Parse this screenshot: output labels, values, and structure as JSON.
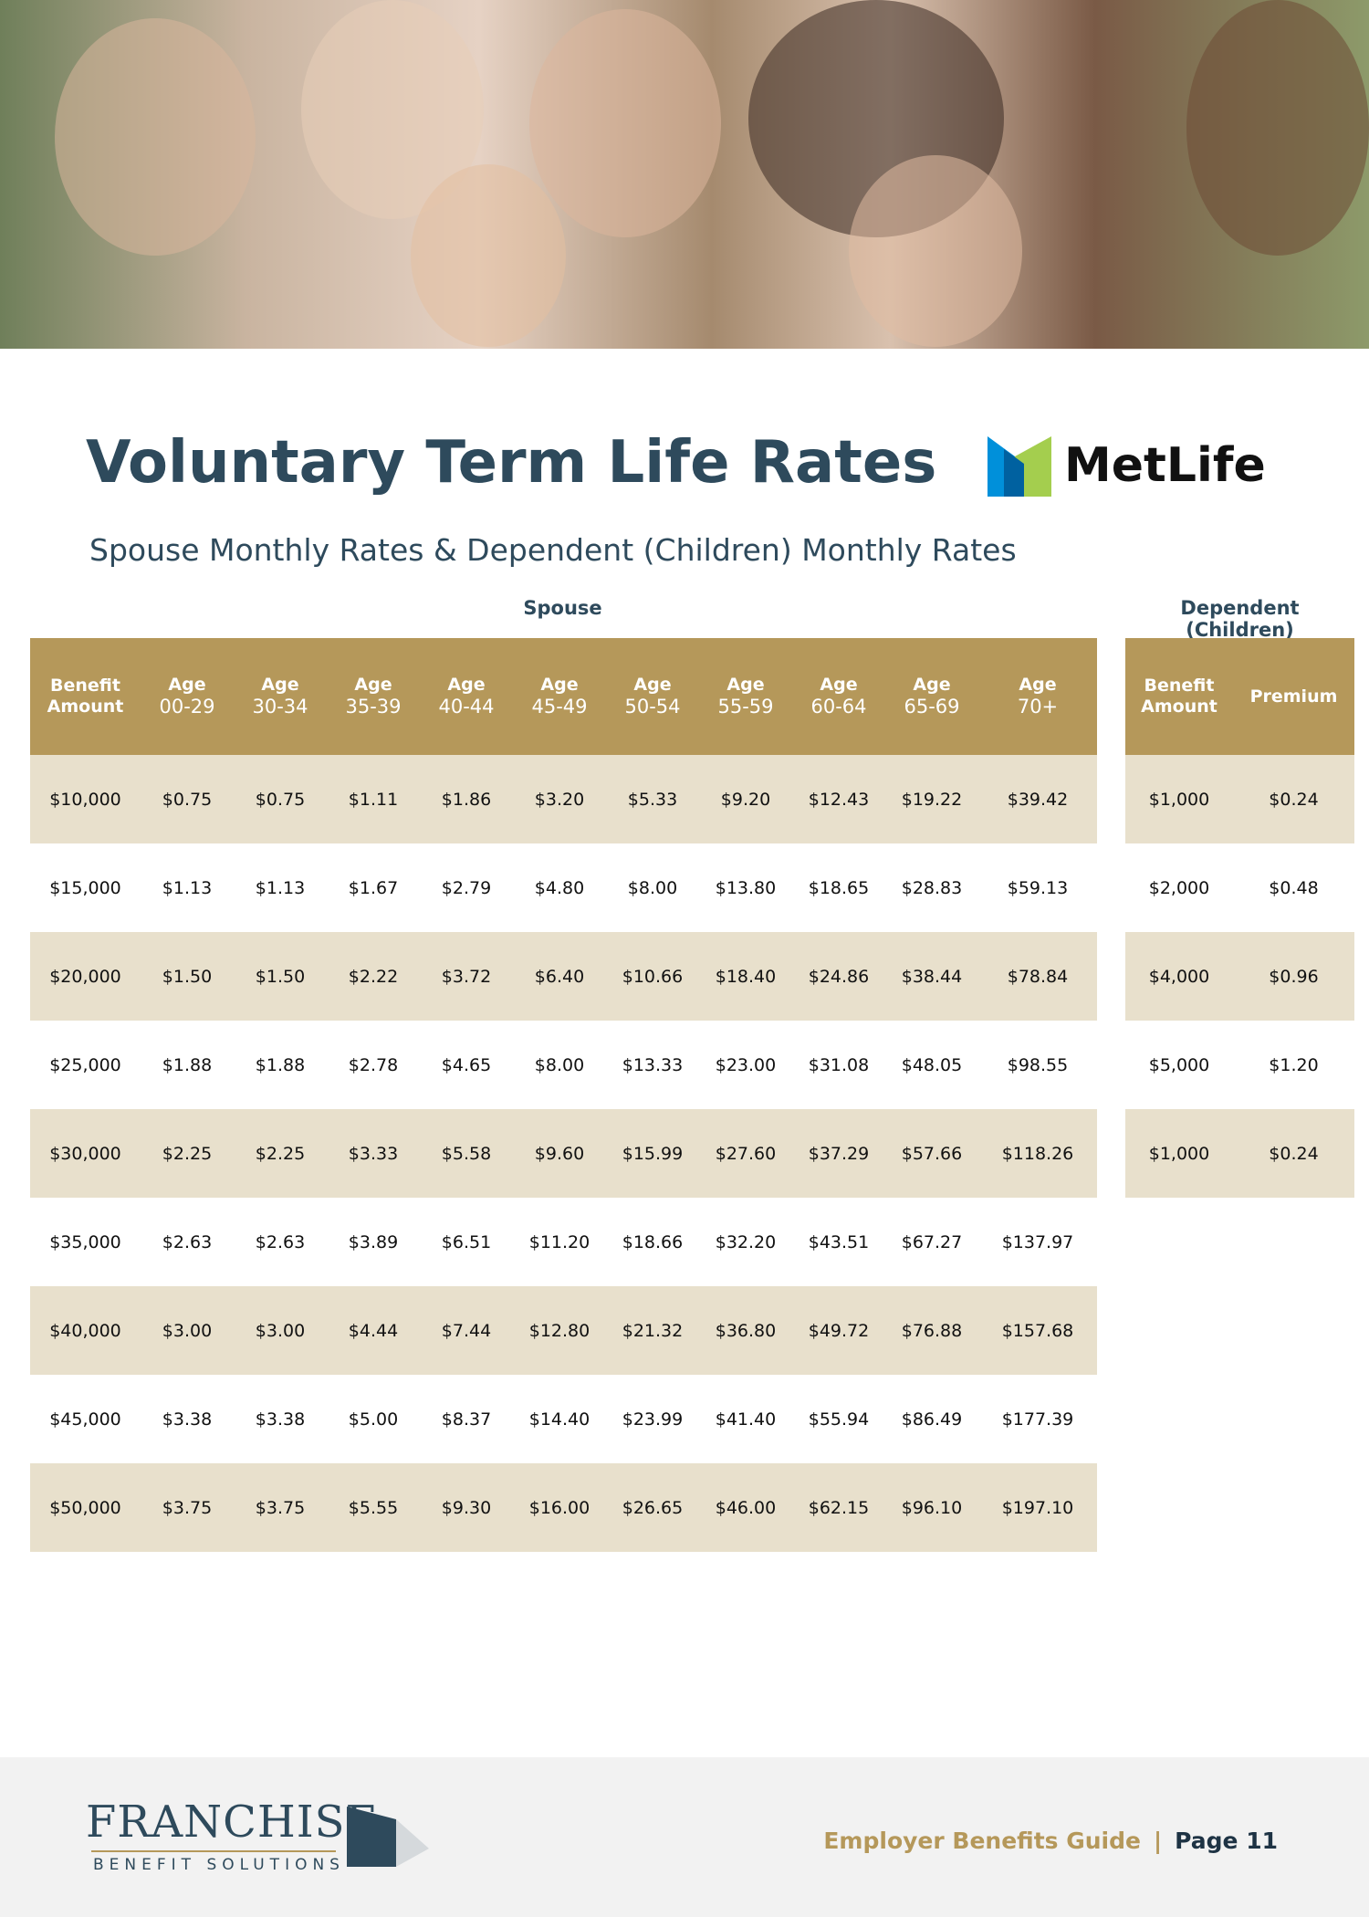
{
  "header": {
    "title": "Voluntary Term Life Rates",
    "subtitle": "Spouse Monthly Rates & Dependent (Children) Monthly Rates",
    "logo": "MetLife"
  },
  "spouse_table": {
    "label": "Spouse",
    "columns": [
      [
        "Benefit",
        "Amount"
      ],
      [
        "Age",
        "00-29"
      ],
      [
        "Age",
        "30-34"
      ],
      [
        "Age",
        "35-39"
      ],
      [
        "Age",
        "40-44"
      ],
      [
        "Age",
        "45-49"
      ],
      [
        "Age",
        "50-54"
      ],
      [
        "Age",
        "55-59"
      ],
      [
        "Age",
        "60-64"
      ],
      [
        "Age",
        "65-69"
      ],
      [
        "Age",
        "70+"
      ]
    ],
    "rows": [
      [
        "$10,000",
        "$0.75",
        "$0.75",
        "$1.11",
        "$1.86",
        "$3.20",
        "$5.33",
        "$9.20",
        "$12.43",
        "$19.22",
        "$39.42"
      ],
      [
        "$15,000",
        "$1.13",
        "$1.13",
        "$1.67",
        "$2.79",
        "$4.80",
        "$8.00",
        "$13.80",
        "$18.65",
        "$28.83",
        "$59.13"
      ],
      [
        "$20,000",
        "$1.50",
        "$1.50",
        "$2.22",
        "$3.72",
        "$6.40",
        "$10.66",
        "$18.40",
        "$24.86",
        "$38.44",
        "$78.84"
      ],
      [
        "$25,000",
        "$1.88",
        "$1.88",
        "$2.78",
        "$4.65",
        "$8.00",
        "$13.33",
        "$23.00",
        "$31.08",
        "$48.05",
        "$98.55"
      ],
      [
        "$30,000",
        "$2.25",
        "$2.25",
        "$3.33",
        "$5.58",
        "$9.60",
        "$15.99",
        "$27.60",
        "$37.29",
        "$57.66",
        "$118.26"
      ],
      [
        "$35,000",
        "$2.63",
        "$2.63",
        "$3.89",
        "$6.51",
        "$11.20",
        "$18.66",
        "$32.20",
        "$43.51",
        "$67.27",
        "$137.97"
      ],
      [
        "$40,000",
        "$3.00",
        "$3.00",
        "$4.44",
        "$7.44",
        "$12.80",
        "$21.32",
        "$36.80",
        "$49.72",
        "$76.88",
        "$157.68"
      ],
      [
        "$45,000",
        "$3.38",
        "$3.38",
        "$5.00",
        "$8.37",
        "$14.40",
        "$23.99",
        "$41.40",
        "$55.94",
        "$86.49",
        "$177.39"
      ],
      [
        "$50,000",
        "$3.75",
        "$3.75",
        "$5.55",
        "$9.30",
        "$16.00",
        "$26.65",
        "$46.00",
        "$62.15",
        "$96.10",
        "$197.10"
      ]
    ]
  },
  "dependent_table": {
    "label": "Dependent (Children)",
    "columns": [
      [
        "Benefit",
        "Amount"
      ],
      [
        "Premium"
      ]
    ],
    "rows": [
      [
        "$1,000",
        "$0.24"
      ],
      [
        "$2,000",
        "$0.48"
      ],
      [
        "$4,000",
        "$0.96"
      ],
      [
        "$5,000",
        "$1.20"
      ],
      [
        "$1,000",
        "$0.24"
      ]
    ]
  },
  "footer": {
    "brand": "FRANCHISE",
    "brand_sub": "BENEFIT SOLUTIONS",
    "guide": "Employer Benefits Guide",
    "separator": "|",
    "page": "Page 11"
  }
}
